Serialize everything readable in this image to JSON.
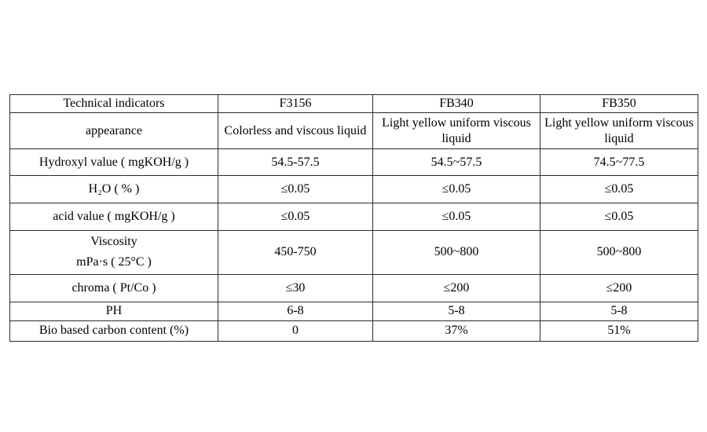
{
  "table": {
    "columns": [
      "Technical indicators",
      "F3156",
      "FB340",
      "FB350"
    ],
    "rows": [
      {
        "label": "appearance",
        "values": [
          "Colorless and viscous liquid",
          "Light yellow uniform viscous liquid",
          "Light yellow uniform viscous liquid"
        ]
      },
      {
        "label": "Hydroxyl value ( mgKOH/g )",
        "values": [
          "54.5-57.5",
          "54.5~57.5",
          "74.5~77.5"
        ]
      },
      {
        "label": "H₂O ( % )",
        "values": [
          "≤0.05",
          "≤0.05",
          "≤0.05"
        ]
      },
      {
        "label": "acid value ( mgKOH/g )",
        "values": [
          "≤0.05",
          "≤0.05",
          "≤0.05"
        ]
      },
      {
        "label": "Viscosity\nmPa·s ( 25°C )",
        "values": [
          "450-750",
          "500~800",
          "500~800"
        ]
      },
      {
        "label": "chroma ( Pt/Co )",
        "values": [
          "≤30",
          "≤200",
          "≤200"
        ]
      },
      {
        "label": "PH",
        "values": [
          "6-8",
          "5-8",
          "5-8"
        ]
      },
      {
        "label": "Bio based carbon content (%)",
        "values": [
          "0",
          "37%",
          "51%"
        ]
      }
    ],
    "colors": {
      "border": "#2a2a2a",
      "text": "#000000",
      "background": "#ffffff"
    }
  }
}
